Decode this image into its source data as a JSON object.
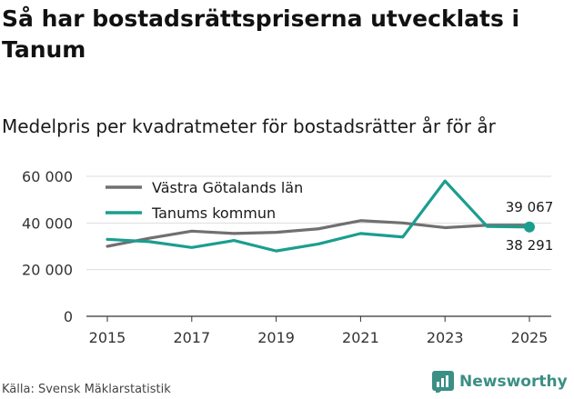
{
  "title": "Så har bostadsrättspriserna utvecklats i Tanum",
  "subtitle": "Medelpris per kvadratmeter för bostadsrätter år för år",
  "source": "Källa: Svensk Mäklarstatistik",
  "brand": "Newsworthy",
  "colors": {
    "lan": "#707070",
    "kommun": "#1a9e8f",
    "grid": "#dddddd",
    "axis": "#333333",
    "brand": "#3b8f84"
  },
  "chart_data": {
    "type": "line",
    "title": "Så har bostadsrättspriserna utvecklats i Tanum",
    "subtitle": "Medelpris per kvadratmeter för bostadsrätter år för år",
    "xlabel": "",
    "ylabel": "",
    "x": [
      2015,
      2016,
      2017,
      2018,
      2019,
      2020,
      2021,
      2022,
      2023,
      2024,
      2025
    ],
    "xticks": [
      "2015",
      "2017",
      "2019",
      "2021",
      "2023",
      "2025"
    ],
    "xlim": [
      2015,
      2025
    ],
    "ylim": [
      0,
      60000
    ],
    "yticks": [
      0,
      20000,
      40000,
      60000
    ],
    "ytick_labels": [
      "0",
      "20 000",
      "40 000",
      "60 000"
    ],
    "grid": true,
    "legend_position": "top-left",
    "series": [
      {
        "name": "Västra Götalands län",
        "values": [
          30000,
          33500,
          36500,
          35500,
          36000,
          37500,
          41000,
          40000,
          38000,
          39067,
          39067
        ],
        "end_label": "39 067"
      },
      {
        "name": "Tanums kommun",
        "values": [
          33000,
          32000,
          29500,
          32500,
          28000,
          31000,
          35500,
          34000,
          58000,
          38500,
          38291
        ],
        "end_label": "38 291"
      }
    ]
  }
}
